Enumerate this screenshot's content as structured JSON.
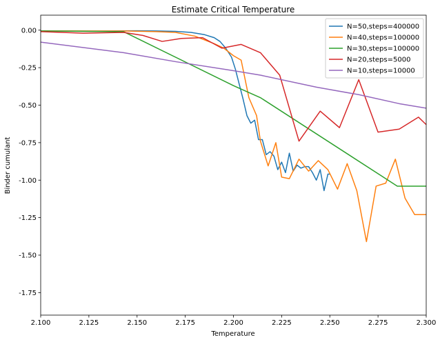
{
  "chart_data": {
    "type": "line",
    "title": "Estimate Critical Temperature",
    "xlabel": "Temperature",
    "ylabel": "Binder cumulant",
    "xlim": [
      2.1,
      2.3
    ],
    "ylim": [
      -1.9,
      0.1
    ],
    "xticks": [
      "2.100",
      "2.125",
      "2.150",
      "2.175",
      "2.200",
      "2.225",
      "2.250",
      "2.275",
      "2.300"
    ],
    "yticks": [
      "0.00",
      "-0.25",
      "-0.50",
      "-0.75",
      "-1.00",
      "-1.25",
      "-1.50",
      "-1.75"
    ],
    "grid": false,
    "legend_position": "top-right",
    "series": [
      {
        "name": "N=50,steps=400000",
        "color": "#1f77b4",
        "x": [
          2.1,
          2.13,
          2.15,
          2.16,
          2.17,
          2.178,
          2.185,
          2.19,
          2.193,
          2.196,
          2.199,
          2.201,
          2.203,
          2.205,
          2.207,
          2.209,
          2.211,
          2.213,
          2.215,
          2.217,
          2.219,
          2.221,
          2.223,
          2.225,
          2.227,
          2.229,
          2.231,
          2.233,
          2.235,
          2.237,
          2.239,
          2.241,
          2.243,
          2.245,
          2.247,
          2.249,
          2.25
        ],
        "y": [
          -0.005,
          -0.006,
          -0.004,
          -0.005,
          -0.008,
          -0.015,
          -0.03,
          -0.05,
          -0.075,
          -0.12,
          -0.18,
          -0.26,
          -0.36,
          -0.46,
          -0.57,
          -0.62,
          -0.6,
          -0.73,
          -0.73,
          -0.83,
          -0.81,
          -0.84,
          -0.93,
          -0.88,
          -0.95,
          -0.82,
          -0.94,
          -0.9,
          -0.92,
          -0.91,
          -0.91,
          -0.95,
          -1.0,
          -0.93,
          -1.07,
          -0.96,
          -0.96
        ]
      },
      {
        "name": "N=40,steps=100000",
        "color": "#ff7f0e",
        "x": [
          2.1,
          2.115,
          2.13,
          2.145,
          2.16,
          2.17,
          2.18,
          2.19,
          2.195,
          2.2,
          2.204,
          2.208,
          2.212,
          2.214,
          2.218,
          2.222,
          2.225,
          2.229,
          2.234,
          2.239,
          2.244,
          2.249,
          2.254,
          2.259,
          2.264,
          2.269,
          2.274,
          2.279,
          2.284,
          2.289,
          2.294,
          2.3
        ],
        "y": [
          -0.005,
          -0.005,
          -0.006,
          -0.006,
          -0.01,
          -0.015,
          -0.04,
          -0.09,
          -0.12,
          -0.17,
          -0.2,
          -0.45,
          -0.57,
          -0.74,
          -0.905,
          -0.75,
          -0.98,
          -0.99,
          -0.86,
          -0.94,
          -0.87,
          -0.93,
          -1.06,
          -0.89,
          -1.07,
          -1.41,
          -1.04,
          -1.02,
          -0.86,
          -1.12,
          -1.23,
          -1.23
        ]
      },
      {
        "name": "N=30,steps=100000",
        "color": "#2ca02c",
        "x": [
          2.1,
          2.143,
          2.2,
          2.214,
          2.285,
          2.3
        ],
        "y": [
          -0.005,
          -0.01,
          -0.37,
          -0.45,
          -1.04,
          -1.04
        ]
      },
      {
        "name": "N=20,steps=5000",
        "color": "#d62728",
        "x": [
          2.1,
          2.122,
          2.143,
          2.153,
          2.163,
          2.173,
          2.184,
          2.194,
          2.204,
          2.214,
          2.224,
          2.234,
          2.245,
          2.255,
          2.265,
          2.275,
          2.286,
          2.296,
          2.3
        ],
        "y": [
          -0.01,
          -0.02,
          -0.015,
          -0.035,
          -0.075,
          -0.055,
          -0.05,
          -0.12,
          -0.095,
          -0.15,
          -0.3,
          -0.74,
          -0.54,
          -0.65,
          -0.33,
          -0.68,
          -0.66,
          -0.58,
          -0.63
        ]
      },
      {
        "name": "N=10,steps=10000",
        "color": "#9467bd",
        "x": [
          2.1,
          2.143,
          2.17,
          2.2,
          2.214,
          2.243,
          2.265,
          2.286,
          2.3
        ],
        "y": [
          -0.08,
          -0.15,
          -0.21,
          -0.27,
          -0.3,
          -0.38,
          -0.43,
          -0.49,
          -0.52
        ]
      }
    ]
  }
}
